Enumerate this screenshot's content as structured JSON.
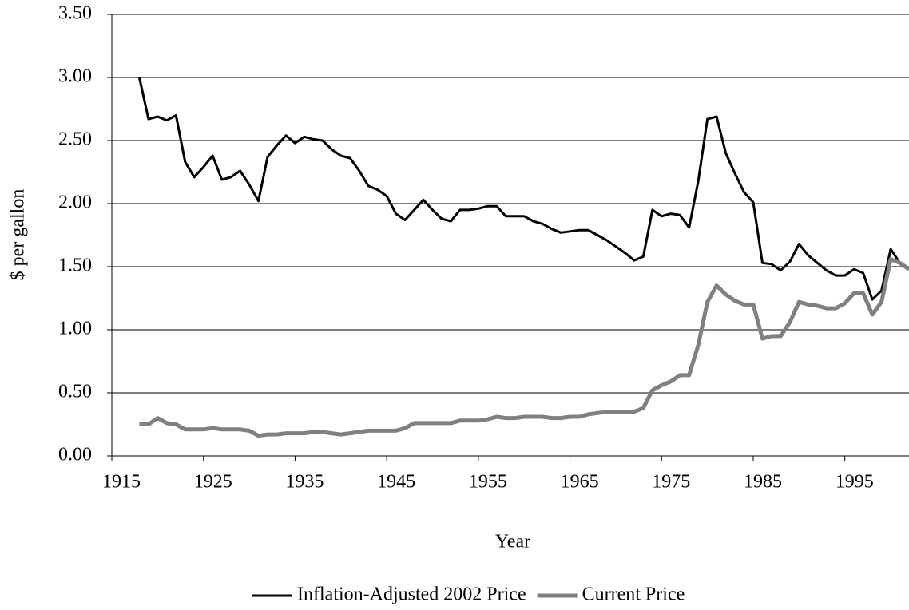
{
  "chart_data": {
    "type": "line",
    "x_label": "Year",
    "y_label": "$ per gallon",
    "x": [
      1918,
      1919,
      1920,
      1921,
      1922,
      1923,
      1924,
      1925,
      1926,
      1927,
      1928,
      1929,
      1930,
      1931,
      1932,
      1933,
      1934,
      1935,
      1936,
      1937,
      1938,
      1939,
      1940,
      1941,
      1942,
      1943,
      1944,
      1945,
      1946,
      1947,
      1948,
      1949,
      1950,
      1951,
      1952,
      1953,
      1954,
      1955,
      1956,
      1957,
      1958,
      1959,
      1960,
      1961,
      1962,
      1963,
      1964,
      1965,
      1966,
      1967,
      1968,
      1969,
      1970,
      1971,
      1972,
      1973,
      1974,
      1975,
      1976,
      1977,
      1978,
      1979,
      1980,
      1981,
      1982,
      1983,
      1984,
      1985,
      1986,
      1987,
      1988,
      1989,
      1990,
      1991,
      1992,
      1993,
      1994,
      1995,
      1996,
      1997,
      1998,
      1999,
      2000,
      2001,
      2002
    ],
    "series": [
      {
        "name": "Inflation-Adjusted 2002 Price",
        "color": "#000000",
        "width": 3,
        "values": [
          3.0,
          2.67,
          2.69,
          2.66,
          2.7,
          2.33,
          2.21,
          2.29,
          2.38,
          2.19,
          2.21,
          2.26,
          2.15,
          2.02,
          2.37,
          2.46,
          2.54,
          2.48,
          2.53,
          2.51,
          2.5,
          2.43,
          2.38,
          2.36,
          2.26,
          2.14,
          2.11,
          2.06,
          1.92,
          1.87,
          1.95,
          2.03,
          1.95,
          1.88,
          1.86,
          1.95,
          1.95,
          1.96,
          1.98,
          1.98,
          1.9,
          1.9,
          1.9,
          1.86,
          1.84,
          1.8,
          1.77,
          1.78,
          1.79,
          1.79,
          1.75,
          1.71,
          1.66,
          1.61,
          1.55,
          1.58,
          1.95,
          1.9,
          1.92,
          1.91,
          1.81,
          2.18,
          2.67,
          2.69,
          2.4,
          2.24,
          2.09,
          2.01,
          1.53,
          1.52,
          1.47,
          1.54,
          1.68,
          1.59,
          1.53,
          1.47,
          1.43,
          1.43,
          1.48,
          1.45,
          1.24,
          1.31,
          1.64,
          1.53,
          1.48
        ]
      },
      {
        "name": "Current Price",
        "color": "#808080",
        "width": 5,
        "values": [
          0.25,
          0.25,
          0.3,
          0.26,
          0.25,
          0.21,
          0.21,
          0.21,
          0.22,
          0.21,
          0.21,
          0.21,
          0.2,
          0.16,
          0.17,
          0.17,
          0.18,
          0.18,
          0.18,
          0.19,
          0.19,
          0.18,
          0.17,
          0.18,
          0.19,
          0.2,
          0.2,
          0.2,
          0.2,
          0.22,
          0.26,
          0.26,
          0.26,
          0.26,
          0.26,
          0.28,
          0.28,
          0.28,
          0.29,
          0.31,
          0.3,
          0.3,
          0.31,
          0.31,
          0.31,
          0.3,
          0.3,
          0.31,
          0.31,
          0.33,
          0.34,
          0.35,
          0.35,
          0.35,
          0.35,
          0.38,
          0.52,
          0.56,
          0.59,
          0.64,
          0.64,
          0.88,
          1.22,
          1.35,
          1.28,
          1.23,
          1.2,
          1.2,
          0.93,
          0.95,
          0.95,
          1.06,
          1.22,
          1.2,
          1.19,
          1.17,
          1.17,
          1.21,
          1.29,
          1.29,
          1.12,
          1.22,
          1.56,
          1.53,
          1.48
        ]
      }
    ],
    "xlim": [
      1915,
      2002
    ],
    "xticks": [
      1915,
      1925,
      1935,
      1945,
      1955,
      1965,
      1975,
      1985,
      1995
    ],
    "ylim": [
      0,
      3.5
    ],
    "yticks": [
      {
        "value": 0,
        "label": "0.00"
      },
      {
        "value": 0.5,
        "label": "0.50"
      },
      {
        "value": 1,
        "label": "1.00"
      },
      {
        "value": 1.5,
        "label": "1.50"
      },
      {
        "value": 2,
        "label": "2.00"
      },
      {
        "value": 2.5,
        "label": "2.50"
      },
      {
        "value": 3,
        "label": "3.00"
      },
      {
        "value": 3.5,
        "label": "3.50"
      }
    ],
    "grid": true,
    "legend": "bottom"
  }
}
